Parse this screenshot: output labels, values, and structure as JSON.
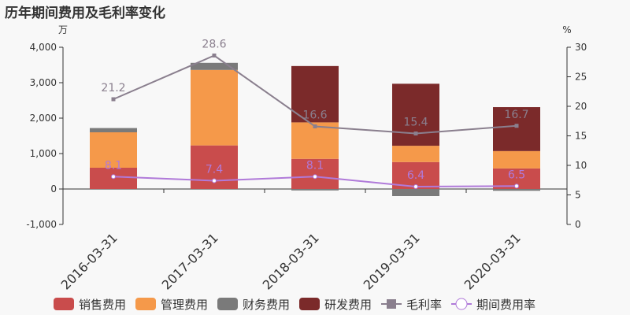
{
  "chart_data": {
    "type": "bar",
    "title": "历年期间费用及毛利率变化",
    "left_unit": "万",
    "right_unit": "%",
    "categories": [
      "2016-03-31",
      "2017-03-31",
      "2018-03-31",
      "2019-03-31",
      "2020-03-31"
    ],
    "left_axis": {
      "ylim": [
        -1000,
        4000
      ],
      "ticks": [
        "-1,000",
        "0",
        "1,000",
        "2,000",
        "3,000",
        "4,000"
      ],
      "tick_values": [
        -1000,
        0,
        1000,
        2000,
        3000,
        4000
      ]
    },
    "right_axis": {
      "ylim": [
        0,
        30
      ],
      "ticks": [
        "0",
        "5",
        "10",
        "15",
        "20",
        "25",
        "30"
      ],
      "tick_values": [
        0,
        5,
        10,
        15,
        20,
        25,
        30
      ]
    },
    "series": [
      {
        "name": "销售费用",
        "kind": "bar",
        "color": "#c94c4c",
        "values": [
          600,
          1230,
          850,
          760,
          580
        ]
      },
      {
        "name": "管理费用",
        "kind": "bar",
        "color": "#f5994a",
        "values": [
          1000,
          2130,
          1030,
          460,
          490
        ]
      },
      {
        "name": "财务费用",
        "kind": "bar",
        "color": "#7a7a7a",
        "values": [
          120,
          200,
          -40,
          -200,
          -50
        ]
      },
      {
        "name": "研发费用",
        "kind": "bar",
        "color": "#7b2a2a",
        "values": [
          0,
          0,
          1590,
          1750,
          1240
        ]
      },
      {
        "name": "毛利率",
        "kind": "line",
        "axis": "right",
        "color": "#8a7f8e",
        "marker": "square",
        "values": [
          21.2,
          28.6,
          16.6,
          15.4,
          16.7
        ],
        "labels": [
          "21.2",
          "28.6",
          "16.6",
          "15.4",
          "16.7"
        ]
      },
      {
        "name": "期间费用率",
        "kind": "line",
        "axis": "right",
        "color": "#b07ad9",
        "marker": "circle",
        "values": [
          8.1,
          7.4,
          8.1,
          6.4,
          6.5
        ],
        "labels": [
          "8.1",
          "7.4",
          "8.1",
          "6.4",
          "6.5"
        ]
      }
    ],
    "legend": {
      "position": "bottom"
    },
    "grid": false
  }
}
